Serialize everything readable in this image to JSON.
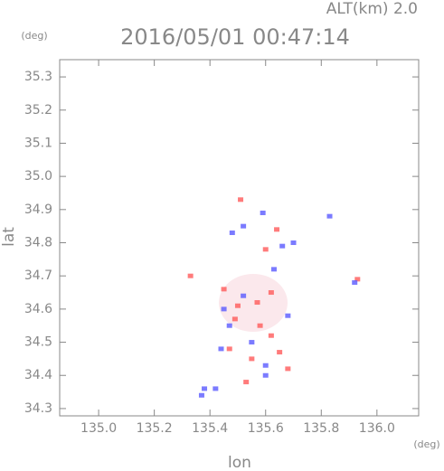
{
  "chart_data": {
    "type": "scatter",
    "title": "2016/05/01 00:47:14",
    "subtitle": "ALT(km) 2.0",
    "x_label": "lon",
    "y_label": "lat",
    "x_unit": "(deg)",
    "y_unit": "(deg)",
    "xlim": [
      134.86,
      136.15
    ],
    "ylim": [
      34.278,
      35.352
    ],
    "xticks": [
      {
        "value": 135.0,
        "label": "135.0"
      },
      135.2,
      135.4,
      135.6,
      135.8,
      {
        "value": 136.0,
        "label": "136.0"
      }
    ],
    "yticks": [
      34.3,
      34.4,
      34.5,
      34.6,
      34.7,
      34.8,
      34.9,
      {
        "value": 35.0,
        "label": "35.0"
      },
      35.1,
      35.2,
      35.3
    ],
    "series": [
      {
        "color": "#ff5a5a",
        "x": [
          135.5,
          135.47,
          135.53,
          135.62,
          135.58,
          135.65,
          135.51,
          135.33,
          135.93,
          135.6,
          135.45,
          135.57,
          135.64,
          135.49,
          135.62,
          135.55,
          135.68
        ],
        "y": [
          34.61,
          34.48,
          34.38,
          34.65,
          34.55,
          34.47,
          34.93,
          34.7,
          34.69,
          34.78,
          34.66,
          34.62,
          34.84,
          34.57,
          34.52,
          34.45,
          34.42
        ]
      },
      {
        "color": "#5a5aff",
        "x": [
          135.6,
          135.55,
          135.45,
          135.63,
          135.66,
          135.7,
          135.42,
          135.37,
          135.48,
          135.52,
          135.83,
          135.92,
          135.6,
          135.47,
          135.52,
          135.68,
          135.44,
          135.59,
          135.38
        ],
        "y": [
          34.43,
          34.5,
          34.6,
          34.72,
          34.79,
          34.8,
          34.36,
          34.34,
          34.83,
          34.85,
          34.88,
          34.68,
          34.4,
          34.55,
          34.64,
          34.58,
          34.48,
          34.89,
          34.36
        ]
      }
    ]
  }
}
